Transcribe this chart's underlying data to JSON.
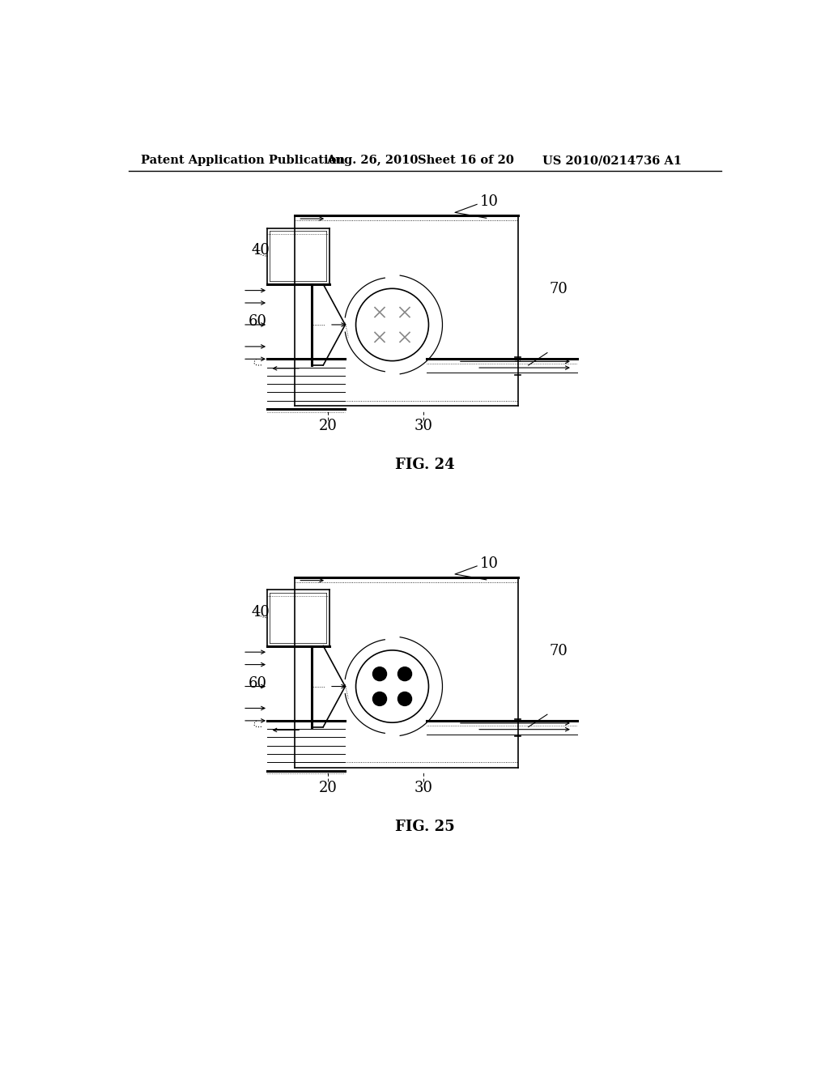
{
  "bg_color": "#ffffff",
  "header_text": "Patent Application Publication",
  "header_date": "Aug. 26, 2010",
  "header_sheet": "Sheet 16 of 20",
  "header_patent": "US 2010/0214736 A1",
  "fig24_label": "FIG. 24",
  "fig25_label": "FIG. 25"
}
